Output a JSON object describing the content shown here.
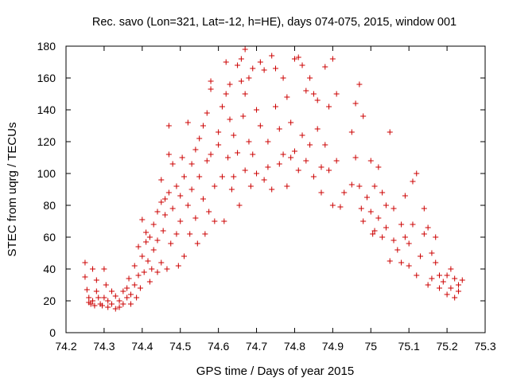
{
  "chart_data": {
    "type": "scatter",
    "title": "Rec. savo (Lon=321, Lat=-12, h=HE), days 074-075, 2015, window 001",
    "xlabel": "GPS time / Days of year 2015",
    "ylabel": "STEC from uqrg / TECUs",
    "xlim": [
      74.2,
      75.3
    ],
    "ylim": [
      0,
      180
    ],
    "x_ticks": [
      "74.2",
      "74.3",
      "74.4",
      "74.5",
      "74.6",
      "74.7",
      "74.8",
      "74.9",
      "75",
      "75.1",
      "75.2",
      "75.3"
    ],
    "y_ticks": [
      "0",
      "20",
      "40",
      "60",
      "80",
      "100",
      "120",
      "140",
      "160",
      "180"
    ],
    "grid": false,
    "legend": "none",
    "marker": "plus",
    "color": "#cc0000",
    "series": [
      {
        "points": [
          [
            74.25,
            44
          ],
          [
            74.25,
            35
          ],
          [
            74.255,
            27
          ],
          [
            74.26,
            22
          ],
          [
            74.26,
            19
          ],
          [
            74.265,
            18
          ],
          [
            74.27,
            20
          ],
          [
            74.275,
            17
          ],
          [
            74.27,
            40
          ],
          [
            74.28,
            33
          ],
          [
            74.28,
            26
          ],
          [
            74.285,
            22
          ],
          [
            74.29,
            18
          ],
          [
            74.295,
            17
          ],
          [
            74.3,
            22
          ],
          [
            74.3,
            40
          ],
          [
            74.305,
            30
          ],
          [
            74.31,
            20
          ],
          [
            74.31,
            16
          ],
          [
            74.32,
            18
          ],
          [
            74.32,
            26
          ],
          [
            74.33,
            23
          ],
          [
            74.33,
            15
          ],
          [
            74.34,
            20
          ],
          [
            74.34,
            16
          ],
          [
            74.35,
            26
          ],
          [
            74.35,
            18
          ],
          [
            74.36,
            22
          ],
          [
            74.36,
            28
          ],
          [
            74.365,
            34
          ],
          [
            74.37,
            24
          ],
          [
            74.37,
            18
          ],
          [
            74.38,
            30
          ],
          [
            74.38,
            42
          ],
          [
            74.385,
            22
          ],
          [
            74.39,
            36
          ],
          [
            74.39,
            54
          ],
          [
            74.395,
            28
          ],
          [
            74.4,
            48
          ],
          [
            74.4,
            71
          ],
          [
            74.405,
            38
          ],
          [
            74.41,
            57
          ],
          [
            74.41,
            63
          ],
          [
            74.415,
            45
          ],
          [
            74.42,
            60
          ],
          [
            74.42,
            32
          ],
          [
            74.425,
            40
          ],
          [
            74.43,
            68
          ],
          [
            74.43,
            52
          ],
          [
            74.44,
            76
          ],
          [
            74.44,
            58
          ],
          [
            74.44,
            38
          ],
          [
            74.45,
            82
          ],
          [
            74.45,
            96
          ],
          [
            74.45,
            44
          ],
          [
            74.455,
            64
          ],
          [
            74.46,
            74
          ],
          [
            74.46,
            84
          ],
          [
            74.465,
            40
          ],
          [
            74.47,
            112
          ],
          [
            74.47,
            130
          ],
          [
            74.47,
            88
          ],
          [
            74.475,
            56
          ],
          [
            74.48,
            106
          ],
          [
            74.48,
            78
          ],
          [
            74.49,
            62
          ],
          [
            74.49,
            92
          ],
          [
            74.495,
            42
          ],
          [
            74.5,
            86
          ],
          [
            74.5,
            70
          ],
          [
            74.505,
            110
          ],
          [
            74.51,
            98
          ],
          [
            74.51,
            48
          ],
          [
            74.52,
            80
          ],
          [
            74.52,
            132
          ],
          [
            74.525,
            62
          ],
          [
            74.53,
            106
          ],
          [
            74.53,
            90
          ],
          [
            74.54,
            115
          ],
          [
            74.54,
            72
          ],
          [
            74.545,
            56
          ],
          [
            74.55,
            122
          ],
          [
            74.55,
            98
          ],
          [
            74.56,
            84
          ],
          [
            74.56,
            130
          ],
          [
            74.565,
            62
          ],
          [
            74.57,
            138
          ],
          [
            74.57,
            108
          ],
          [
            74.575,
            76
          ],
          [
            74.58,
            158
          ],
          [
            74.58,
            153
          ],
          [
            74.58,
            112
          ],
          [
            74.59,
            92
          ],
          [
            74.59,
            70
          ],
          [
            74.6,
            126
          ],
          [
            74.6,
            118
          ],
          [
            74.61,
            142
          ],
          [
            74.61,
            98
          ],
          [
            74.615,
            70
          ],
          [
            74.62,
            150
          ],
          [
            74.62,
            170
          ],
          [
            74.625,
            110
          ],
          [
            74.63,
            156
          ],
          [
            74.63,
            134
          ],
          [
            74.635,
            90
          ],
          [
            74.64,
            124
          ],
          [
            74.64,
            98
          ],
          [
            74.65,
            168
          ],
          [
            74.65,
            113
          ],
          [
            74.655,
            80
          ],
          [
            74.66,
            172
          ],
          [
            74.66,
            158
          ],
          [
            74.665,
            136
          ],
          [
            74.67,
            178
          ],
          [
            74.67,
            150
          ],
          [
            74.67,
            102
          ],
          [
            74.68,
            160
          ],
          [
            74.68,
            120
          ],
          [
            74.685,
            92
          ],
          [
            74.69,
            166
          ],
          [
            74.69,
            112
          ],
          [
            74.7,
            140
          ],
          [
            74.7,
            100
          ],
          [
            74.71,
            170
          ],
          [
            74.71,
            130
          ],
          [
            74.72,
            165
          ],
          [
            74.72,
            96
          ],
          [
            74.73,
            120
          ],
          [
            74.73,
            104
          ],
          [
            74.74,
            174
          ],
          [
            74.74,
            90
          ],
          [
            74.75,
            166
          ],
          [
            74.75,
            142
          ],
          [
            74.76,
            128
          ],
          [
            74.76,
            106
          ],
          [
            74.77,
            160
          ],
          [
            74.77,
            112
          ],
          [
            74.78,
            148
          ],
          [
            74.78,
            92
          ],
          [
            74.79,
            132
          ],
          [
            74.79,
            110
          ],
          [
            74.8,
            172
          ],
          [
            74.8,
            114
          ],
          [
            74.81,
            173
          ],
          [
            74.81,
            102
          ],
          [
            74.82,
            168
          ],
          [
            74.82,
            124
          ],
          [
            74.83,
            152
          ],
          [
            74.83,
            108
          ],
          [
            74.84,
            160
          ],
          [
            74.84,
            118
          ],
          [
            74.85,
            150
          ],
          [
            74.85,
            98
          ],
          [
            74.86,
            146
          ],
          [
            74.86,
            128
          ],
          [
            74.87,
            104
          ],
          [
            74.87,
            88
          ],
          [
            74.88,
            167
          ],
          [
            74.88,
            118
          ],
          [
            74.89,
            142
          ],
          [
            74.89,
            102
          ],
          [
            74.9,
            172
          ],
          [
            74.9,
            80
          ],
          [
            74.91,
            150
          ],
          [
            74.91,
            108
          ],
          [
            74.92,
            79
          ],
          [
            74.93,
            88
          ],
          [
            74.95,
            126
          ],
          [
            74.95,
            93
          ],
          [
            74.96,
            144
          ],
          [
            74.96,
            110
          ],
          [
            74.97,
            156
          ],
          [
            74.97,
            92
          ],
          [
            74.975,
            78
          ],
          [
            74.98,
            136
          ],
          [
            74.98,
            70
          ],
          [
            74.99,
            85
          ],
          [
            75.0,
            108
          ],
          [
            75.0,
            76
          ],
          [
            75.005,
            62
          ],
          [
            75.01,
            92
          ],
          [
            75.01,
            64
          ],
          [
            75.02,
            104
          ],
          [
            75.02,
            72
          ],
          [
            75.03,
            88
          ],
          [
            75.03,
            60
          ],
          [
            75.04,
            80
          ],
          [
            75.04,
            66
          ],
          [
            75.05,
            126
          ],
          [
            75.05,
            45
          ],
          [
            75.06,
            78
          ],
          [
            75.06,
            58
          ],
          [
            75.07,
            52
          ],
          [
            75.08,
            68
          ],
          [
            75.08,
            44
          ],
          [
            75.09,
            60
          ],
          [
            75.09,
            86
          ],
          [
            75.1,
            56
          ],
          [
            75.1,
            42
          ],
          [
            75.11,
            95
          ],
          [
            75.11,
            68
          ],
          [
            75.12,
            100
          ],
          [
            75.12,
            36
          ],
          [
            75.13,
            48
          ],
          [
            75.14,
            78
          ],
          [
            75.14,
            62
          ],
          [
            75.15,
            66
          ],
          [
            75.15,
            30
          ],
          [
            75.16,
            50
          ],
          [
            75.16,
            34
          ],
          [
            75.17,
            44
          ],
          [
            75.17,
            60
          ],
          [
            75.18,
            36
          ],
          [
            75.18,
            28
          ],
          [
            75.19,
            32
          ],
          [
            75.2,
            36
          ],
          [
            75.2,
            24
          ],
          [
            75.21,
            40
          ],
          [
            75.21,
            28
          ],
          [
            75.22,
            34
          ],
          [
            75.22,
            22
          ],
          [
            75.23,
            30
          ],
          [
            75.23,
            26
          ],
          [
            75.24,
            33
          ]
        ]
      }
    ]
  }
}
